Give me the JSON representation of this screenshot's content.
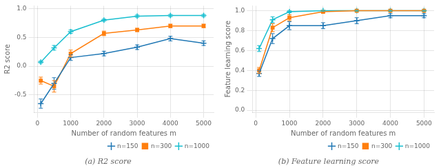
{
  "chart_data": [
    {
      "type": "line",
      "title": "(a) R2 score",
      "xlabel": "Number of random features m",
      "ylabel": "R2 score",
      "x": [
        100,
        500,
        1000,
        2000,
        3000,
        4000,
        5000
      ],
      "series": [
        {
          "name": "n=150",
          "color": "#1f77b4",
          "marker": "plus",
          "values": [
            -0.65,
            -0.3,
            0.15,
            0.22,
            0.33,
            0.48,
            0.4
          ],
          "errors": [
            0.08,
            0.1,
            0.05,
            0.04,
            0.04,
            0.04,
            0.04
          ]
        },
        {
          "name": "n=300",
          "color": "#ff7f0e",
          "marker": "square",
          "values": [
            -0.25,
            -0.35,
            0.22,
            0.57,
            0.63,
            0.7,
            0.7
          ],
          "errors": [
            0.06,
            0.1,
            0.06,
            0.04,
            0.03,
            0.03,
            0.03
          ]
        },
        {
          "name": "n=1000",
          "color": "#17becf",
          "marker": "plus",
          "values": [
            0.07,
            0.32,
            0.6,
            0.8,
            0.87,
            0.88,
            0.88
          ],
          "errors": [
            0.02,
            0.04,
            0.03,
            0.02,
            0.02,
            0.02,
            0.02
          ]
        }
      ],
      "xlim": [
        -100,
        5300
      ],
      "xticks": [
        0,
        1000,
        2000,
        3000,
        4000,
        5000
      ],
      "ylim": [
        -0.8,
        1.05
      ],
      "yticks": [
        -0.5,
        {
          "value": 0.0,
          "label": "0.0"
        },
        0.5,
        {
          "value": 1.0,
          "label": "1.0"
        }
      ],
      "grid": true,
      "legend": "lower right",
      "reference_lines": [
        {
          "value": 0.0,
          "color": "#555555"
        },
        {
          "value": 1.0,
          "color": "#555555"
        }
      ]
    },
    {
      "type": "line",
      "title": "(b) Feature learning score",
      "xlabel": "Number of random features m",
      "ylabel": "Feature learning score",
      "x": [
        100,
        500,
        1000,
        2000,
        3000,
        4000,
        5000
      ],
      "series": [
        {
          "name": "n=150",
          "color": "#1f77b4",
          "marker": "plus",
          "values": [
            0.37,
            0.72,
            0.85,
            0.85,
            0.9,
            0.95,
            0.95
          ],
          "errors": [
            0.03,
            0.05,
            0.04,
            0.03,
            0.03,
            0.02,
            0.02
          ]
        },
        {
          "name": "n=300",
          "color": "#ff7f0e",
          "marker": "square",
          "values": [
            0.4,
            0.83,
            0.93,
            0.99,
            1.0,
            1.0,
            1.0
          ],
          "errors": [
            0.03,
            0.04,
            0.03,
            0.01,
            0.005,
            0.005,
            0.005
          ]
        },
        {
          "name": "n=1000",
          "color": "#17becf",
          "marker": "plus",
          "values": [
            0.62,
            0.91,
            0.99,
            1.0,
            1.0,
            1.0,
            1.0
          ],
          "errors": [
            0.03,
            0.03,
            0.01,
            0.005,
            0.005,
            0.005,
            0.005
          ]
        }
      ],
      "xlim": [
        -100,
        5300
      ],
      "xticks": [
        0,
        1000,
        2000,
        3000,
        4000,
        5000
      ],
      "ylim": [
        -0.02,
        1.05
      ],
      "yticks": [
        {
          "value": 0.0,
          "label": "0.0"
        },
        0.2,
        0.4,
        0.6,
        0.8,
        {
          "value": 1.0,
          "label": "1.0"
        }
      ],
      "grid": true,
      "legend": "lower right",
      "reference_lines": [
        {
          "value": 0.0,
          "color": "#555555"
        },
        {
          "value": 1.0,
          "color": "#555555"
        }
      ]
    }
  ]
}
